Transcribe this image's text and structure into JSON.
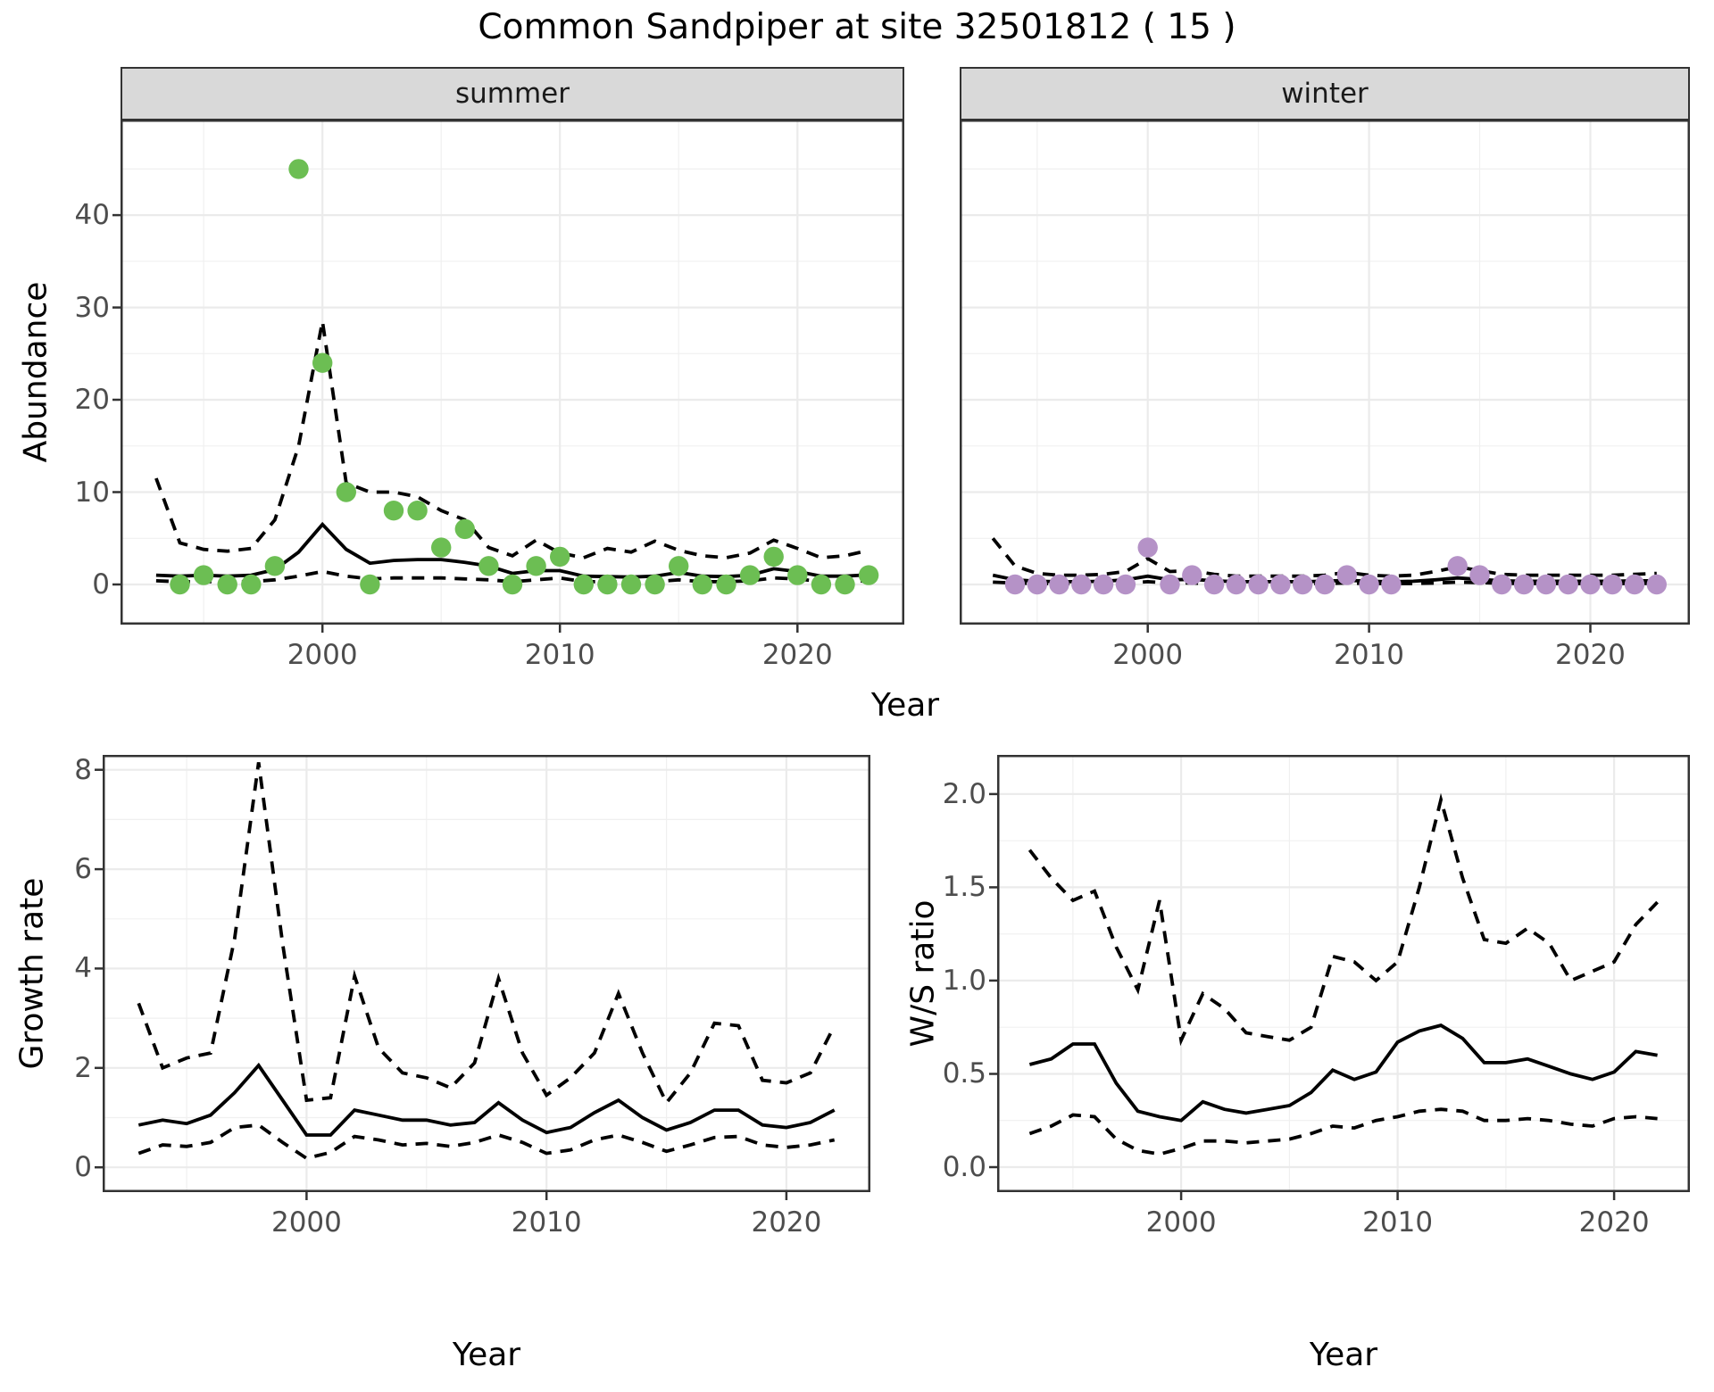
{
  "title": "Common Sandpiper at site 32501812 ( 15 )",
  "axes": {
    "abundance": "Abundance",
    "year": "Year",
    "growth_rate": "Growth rate",
    "ws_ratio": "W/S ratio"
  },
  "colors": {
    "summer_points": "#6CBE53",
    "winter_points": "#B592C7",
    "line": "#000000",
    "strip_bg": "#D9D9D9",
    "panel_border": "#333333",
    "grid_major": "#EBEBEB",
    "grid_minor": "#F0F0F0",
    "axis_text": "#4D4D4D"
  },
  "chart_data": [
    {
      "name": "abundance-summer",
      "type": "line",
      "facet": "summer",
      "title": "Common Sandpiper at site 32501812 ( 15 )",
      "xlabel": "Year",
      "ylabel": "Abundance",
      "xlim": [
        1991.5,
        2024.5
      ],
      "ylim": [
        -4.35,
        50.35
      ],
      "x_ticks": [
        2000,
        2010,
        2020
      ],
      "x_minor": [
        1995,
        2005,
        2015
      ],
      "y_ticks": [
        0,
        10,
        20,
        30,
        40
      ],
      "y_tick_labels": [
        "0",
        "10",
        "20",
        "30",
        "40"
      ],
      "y_minor": [
        5,
        15,
        25,
        35,
        45
      ],
      "grid": true,
      "legend": "none",
      "years": [
        1993,
        1994,
        1995,
        1996,
        1997,
        1998,
        1999,
        2000,
        2001,
        2002,
        2003,
        2004,
        2005,
        2006,
        2007,
        2008,
        2009,
        2010,
        2011,
        2012,
        2013,
        2014,
        2015,
        2016,
        2017,
        2018,
        2019,
        2020,
        2021,
        2022,
        2023
      ],
      "series": [
        {
          "name": "upper-ci",
          "style": "dashed",
          "values": [
            11.5,
            4.5,
            3.8,
            3.6,
            3.9,
            7.0,
            15.0,
            28.5,
            11.0,
            10.0,
            10.0,
            9.5,
            8.0,
            7.0,
            4.0,
            3.1,
            4.8,
            3.4,
            2.9,
            3.9,
            3.5,
            4.7,
            3.7,
            3.1,
            2.9,
            3.4,
            4.8,
            3.9,
            2.9,
            3.1,
            3.7
          ]
        },
        {
          "name": "lower-ci",
          "style": "dashed",
          "values": [
            0.4,
            0.3,
            0.3,
            0.3,
            0.3,
            0.5,
            0.9,
            1.4,
            0.9,
            0.6,
            0.7,
            0.7,
            0.7,
            0.6,
            0.5,
            0.3,
            0.5,
            0.7,
            0.3,
            0.3,
            0.3,
            0.3,
            0.5,
            0.3,
            0.3,
            0.4,
            0.7,
            0.6,
            0.3,
            0.3,
            0.4
          ]
        },
        {
          "name": "fit",
          "style": "solid",
          "values": [
            1.0,
            0.9,
            1.0,
            0.9,
            1.0,
            1.6,
            3.5,
            6.5,
            3.8,
            2.3,
            2.6,
            2.7,
            2.7,
            2.4,
            2.0,
            1.2,
            1.5,
            1.5,
            0.9,
            0.85,
            0.8,
            0.9,
            1.3,
            0.9,
            0.85,
            1.0,
            1.7,
            1.4,
            0.9,
            0.9,
            1.05
          ]
        }
      ],
      "points": {
        "color_key": "summer_points",
        "years": [
          1994,
          1995,
          1996,
          1997,
          1998,
          1999,
          2000,
          2001,
          2002,
          2003,
          2004,
          2005,
          2006,
          2007,
          2008,
          2009,
          2010,
          2011,
          2012,
          2013,
          2014,
          2015,
          2016,
          2017,
          2018,
          2019,
          2020,
          2021,
          2022,
          2023
        ],
        "values": [
          0,
          1,
          0,
          0,
          2,
          45,
          24,
          10,
          0,
          8,
          8,
          4,
          6,
          2,
          0,
          2,
          3,
          0,
          0,
          0,
          0,
          2,
          0,
          0,
          1,
          3,
          1,
          0,
          0,
          1
        ]
      }
    },
    {
      "name": "abundance-winter",
      "type": "line",
      "facet": "winter",
      "title": "",
      "xlabel": "Year",
      "ylabel": "Abundance",
      "xlim": [
        1991.5,
        2024.5
      ],
      "ylim": [
        -4.35,
        50.35
      ],
      "x_ticks": [
        2000,
        2010,
        2020
      ],
      "x_minor": [
        1995,
        2005,
        2015
      ],
      "y_ticks": [
        0,
        10,
        20,
        30,
        40
      ],
      "y_tick_labels": [],
      "y_minor": [
        5,
        15,
        25,
        35,
        45
      ],
      "grid": true,
      "legend": "none",
      "years": [
        1993,
        1994,
        1995,
        1996,
        1997,
        1998,
        1999,
        2000,
        2001,
        2002,
        2003,
        2004,
        2005,
        2006,
        2007,
        2008,
        2009,
        2010,
        2011,
        2012,
        2013,
        2014,
        2015,
        2016,
        2017,
        2018,
        2019,
        2020,
        2021,
        2022,
        2023
      ],
      "series": [
        {
          "name": "upper-ci",
          "style": "dashed",
          "values": [
            5.0,
            2.0,
            1.2,
            1.0,
            1.0,
            1.1,
            1.4,
            2.8,
            1.4,
            1.5,
            1.1,
            0.9,
            0.9,
            0.9,
            0.9,
            1.0,
            1.3,
            1.0,
            0.9,
            1.0,
            1.4,
            1.9,
            1.5,
            1.1,
            1.0,
            1.0,
            1.0,
            1.0,
            1.0,
            1.1,
            1.2
          ]
        },
        {
          "name": "lower-ci",
          "style": "dashed",
          "values": [
            0.25,
            0.15,
            0.1,
            0.1,
            0.1,
            0.1,
            0.15,
            0.3,
            0.15,
            0.15,
            0.1,
            0.1,
            0.1,
            0.1,
            0.1,
            0.1,
            0.15,
            0.1,
            0.1,
            0.1,
            0.15,
            0.25,
            0.2,
            0.12,
            0.1,
            0.1,
            0.1,
            0.1,
            0.1,
            0.1,
            0.12
          ]
        },
        {
          "name": "fit",
          "style": "solid",
          "values": [
            1.0,
            0.5,
            0.35,
            0.3,
            0.3,
            0.35,
            0.5,
            0.9,
            0.5,
            0.55,
            0.4,
            0.3,
            0.3,
            0.3,
            0.3,
            0.35,
            0.45,
            0.35,
            0.3,
            0.35,
            0.5,
            0.7,
            0.55,
            0.4,
            0.35,
            0.35,
            0.35,
            0.35,
            0.35,
            0.4,
            0.4
          ]
        }
      ],
      "points": {
        "color_key": "winter_points",
        "years": [
          1994,
          1995,
          1996,
          1997,
          1998,
          1999,
          2000,
          2001,
          2002,
          2003,
          2004,
          2005,
          2006,
          2007,
          2008,
          2009,
          2010,
          2011,
          2014,
          2015,
          2016,
          2017,
          2018,
          2019,
          2020,
          2021,
          2022,
          2023
        ],
        "values": [
          0,
          0,
          0,
          0,
          0,
          0,
          4,
          0,
          1,
          0,
          0,
          0,
          0,
          0,
          0,
          1,
          0,
          0,
          2,
          1,
          0,
          0,
          0,
          0,
          0,
          0,
          0,
          0
        ]
      }
    },
    {
      "name": "growth-rate",
      "type": "line",
      "facet": null,
      "title": "",
      "xlabel": "Year",
      "ylabel": "Growth rate",
      "xlim": [
        1991.5,
        2023.5
      ],
      "ylim": [
        -0.5,
        8.3
      ],
      "x_ticks": [
        2000,
        2010,
        2020
      ],
      "x_minor": [
        1995,
        2005,
        2015
      ],
      "y_ticks": [
        0,
        2,
        4,
        6,
        8
      ],
      "y_tick_labels": [
        "0",
        "2",
        "4",
        "6",
        "8"
      ],
      "y_minor": [
        1,
        3,
        5,
        7
      ],
      "grid": true,
      "legend": "none",
      "years": [
        1993,
        1994,
        1995,
        1996,
        1997,
        1998,
        1999,
        2000,
        2001,
        2002,
        2003,
        2004,
        2005,
        2006,
        2007,
        2008,
        2009,
        2010,
        2011,
        2012,
        2013,
        2014,
        2015,
        2016,
        2017,
        2018,
        2019,
        2020,
        2021,
        2022
      ],
      "series": [
        {
          "name": "upper-ci",
          "style": "dashed",
          "values": [
            3.3,
            2.0,
            2.2,
            2.3,
            4.6,
            8.15,
            4.5,
            1.35,
            1.4,
            3.85,
            2.4,
            1.9,
            1.8,
            1.6,
            2.1,
            3.8,
            2.3,
            1.45,
            1.8,
            2.3,
            3.5,
            2.3,
            1.3,
            1.9,
            2.9,
            2.85,
            1.75,
            1.7,
            1.9,
            2.85
          ]
        },
        {
          "name": "lower-ci",
          "style": "dashed",
          "values": [
            0.28,
            0.45,
            0.42,
            0.5,
            0.8,
            0.85,
            0.5,
            0.18,
            0.3,
            0.62,
            0.55,
            0.45,
            0.48,
            0.42,
            0.5,
            0.65,
            0.5,
            0.28,
            0.35,
            0.55,
            0.65,
            0.5,
            0.32,
            0.45,
            0.6,
            0.62,
            0.45,
            0.4,
            0.45,
            0.55
          ]
        },
        {
          "name": "fit",
          "style": "solid",
          "values": [
            0.85,
            0.95,
            0.88,
            1.05,
            1.5,
            2.05,
            1.35,
            0.65,
            0.65,
            1.15,
            1.05,
            0.95,
            0.95,
            0.85,
            0.9,
            1.3,
            0.95,
            0.7,
            0.8,
            1.1,
            1.35,
            1.0,
            0.75,
            0.9,
            1.15,
            1.15,
            0.85,
            0.8,
            0.9,
            1.15
          ]
        }
      ],
      "points": null
    },
    {
      "name": "ws-ratio",
      "type": "line",
      "facet": null,
      "title": "",
      "xlabel": "Year",
      "ylabel": "W/S ratio",
      "xlim": [
        1991.5,
        2023.5
      ],
      "ylim": [
        -0.134,
        2.21
      ],
      "x_ticks": [
        2000,
        2010,
        2020
      ],
      "x_minor": [
        1995,
        2005,
        2015
      ],
      "y_ticks": [
        0.0,
        0.5,
        1.0,
        1.5,
        2.0
      ],
      "y_tick_labels": [
        "0.0",
        "0.5",
        "1.0",
        "1.5",
        "2.0"
      ],
      "y_minor": [
        0.25,
        0.75,
        1.25,
        1.75
      ],
      "grid": true,
      "legend": "none",
      "years": [
        1993,
        1994,
        1995,
        1996,
        1997,
        1998,
        1999,
        2000,
        2001,
        2002,
        2003,
        2004,
        2005,
        2006,
        2007,
        2008,
        2009,
        2010,
        2011,
        2012,
        2013,
        2014,
        2015,
        2016,
        2017,
        2018,
        2019,
        2020,
        2021,
        2022
      ],
      "series": [
        {
          "name": "upper-ci",
          "style": "dashed",
          "values": [
            1.7,
            1.55,
            1.43,
            1.48,
            1.18,
            0.95,
            1.43,
            0.68,
            0.93,
            0.85,
            0.72,
            0.7,
            0.68,
            0.75,
            1.13,
            1.1,
            1.0,
            1.1,
            1.5,
            1.97,
            1.55,
            1.22,
            1.2,
            1.28,
            1.2,
            1.0,
            1.05,
            1.1,
            1.3,
            1.42
          ]
        },
        {
          "name": "lower-ci",
          "style": "dashed",
          "values": [
            0.18,
            0.22,
            0.28,
            0.27,
            0.15,
            0.09,
            0.07,
            0.1,
            0.14,
            0.14,
            0.13,
            0.14,
            0.15,
            0.18,
            0.22,
            0.21,
            0.25,
            0.27,
            0.3,
            0.31,
            0.3,
            0.25,
            0.25,
            0.26,
            0.25,
            0.23,
            0.22,
            0.26,
            0.27,
            0.26
          ]
        },
        {
          "name": "fit",
          "style": "solid",
          "values": [
            0.55,
            0.58,
            0.66,
            0.66,
            0.45,
            0.3,
            0.27,
            0.25,
            0.35,
            0.31,
            0.29,
            0.31,
            0.33,
            0.4,
            0.52,
            0.47,
            0.51,
            0.67,
            0.73,
            0.76,
            0.69,
            0.56,
            0.56,
            0.58,
            0.54,
            0.5,
            0.47,
            0.51,
            0.62,
            0.6
          ]
        }
      ],
      "points": null
    }
  ]
}
